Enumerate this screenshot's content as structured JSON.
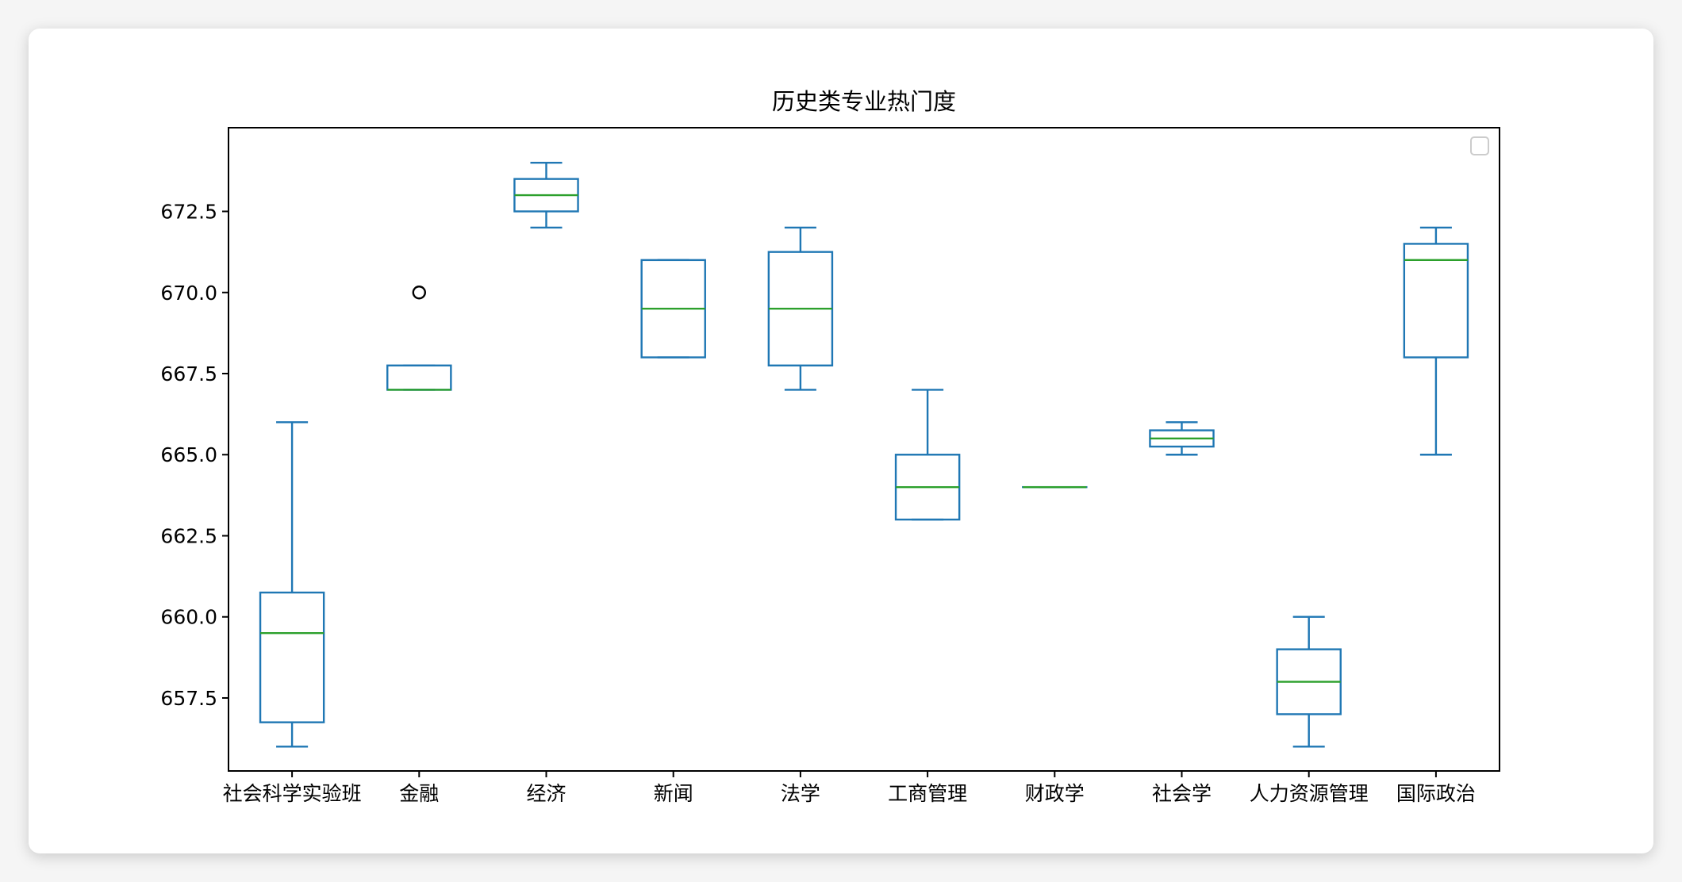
{
  "chart_data": {
    "type": "box",
    "title": "历史类专业热门度",
    "xlabel": "",
    "ylabel": "",
    "ylim": [
      655.25,
      675.08
    ],
    "yticks": [
      "657.5",
      "660.0",
      "662.5",
      "665.0",
      "667.5",
      "670.0",
      "672.5"
    ],
    "categories": [
      "社会科学实验班",
      "金融",
      "经济",
      "新闻",
      "法学",
      "工商管理",
      "财政学",
      "社会学",
      "人力资源管理",
      "国际政治"
    ],
    "boxes": [
      {
        "whisker_low": 656.0,
        "q1": 656.75,
        "median": 659.5,
        "q3": 660.75,
        "whisker_high": 666.0,
        "outliers": []
      },
      {
        "whisker_low": 667.0,
        "q1": 667.0,
        "median": 667.0,
        "q3": 667.75,
        "whisker_high": 667.75,
        "outliers": [
          670.0
        ]
      },
      {
        "whisker_low": 672.0,
        "q1": 672.5,
        "median": 673.0,
        "q3": 673.5,
        "whisker_high": 674.0,
        "outliers": []
      },
      {
        "whisker_low": 668.0,
        "q1": 668.0,
        "median": 669.5,
        "q3": 671.0,
        "whisker_high": 671.0,
        "outliers": []
      },
      {
        "whisker_low": 667.0,
        "q1": 667.75,
        "median": 669.5,
        "q3": 671.25,
        "whisker_high": 672.0,
        "outliers": []
      },
      {
        "whisker_low": 663.0,
        "q1": 663.0,
        "median": 664.0,
        "q3": 665.0,
        "whisker_high": 667.0,
        "outliers": []
      },
      {
        "whisker_low": 664.0,
        "q1": 664.0,
        "median": 664.0,
        "q3": 664.0,
        "whisker_high": 664.0,
        "outliers": []
      },
      {
        "whisker_low": 665.0,
        "q1": 665.25,
        "median": 665.5,
        "q3": 665.75,
        "whisker_high": 666.0,
        "outliers": []
      },
      {
        "whisker_low": 656.0,
        "q1": 657.0,
        "median": 658.0,
        "q3": 659.0,
        "whisker_high": 660.0,
        "outliers": []
      },
      {
        "whisker_low": 665.0,
        "q1": 668.0,
        "median": 671.0,
        "q3": 671.5,
        "whisker_high": 672.0,
        "outliers": []
      }
    ],
    "legend": {
      "position": "top-right",
      "entries": []
    },
    "grid": false,
    "colors": {
      "box": "#1f77b4",
      "median": "#2ca02c",
      "outlier": "#000000"
    }
  }
}
